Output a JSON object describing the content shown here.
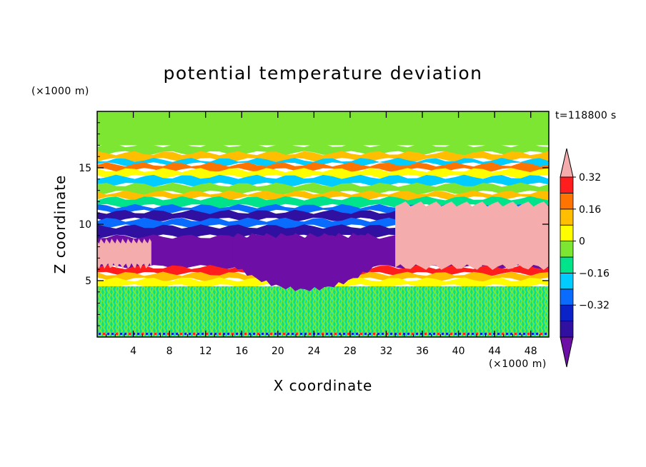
{
  "chart_data": {
    "type": "heatmap",
    "title": "potential temperature deviation",
    "xlabel": "X coordinate",
    "ylabel": "Z coordinate",
    "x_unit": "(×1000 m)",
    "y_unit": "(×1000 m)",
    "time_label": "t=118800 s",
    "xlim": [
      0,
      50
    ],
    "ylim": [
      0,
      20
    ],
    "x_ticks": [
      4,
      8,
      12,
      16,
      20,
      24,
      28,
      32,
      36,
      40,
      44,
      48
    ],
    "y_ticks": [
      5,
      10,
      15
    ],
    "colorbar": {
      "levels": [
        -0.48,
        -0.4,
        -0.32,
        -0.24,
        -0.16,
        -0.08,
        0,
        0.08,
        0.16,
        0.24,
        0.32,
        0.4
      ],
      "tick_values": [
        -0.32,
        -0.16,
        0,
        0.16,
        0.32
      ],
      "tick_labels": [
        "−0.32",
        "−0.16",
        "0",
        "0.16",
        "0.32"
      ],
      "colors": [
        "#6d0fa6",
        "#3010a0",
        "#0a22c8",
        "#0a6cff",
        "#00ccff",
        "#00e38a",
        "#7de632",
        "#fffd00",
        "#ffbe00",
        "#ff7300",
        "#ff1d1d",
        "#f4acac"
      ]
    },
    "field": [
      {
        "z": [
          17,
          20
        ],
        "value": 0.02
      },
      {
        "z": [
          16.3,
          17
        ],
        "value": 0.06
      },
      {
        "z": [
          15.7,
          16.3
        ],
        "value": 0.2
      },
      {
        "z": [
          15.3,
          15.7
        ],
        "value": -0.12
      },
      {
        "z": [
          14.8,
          15.3
        ],
        "value": 0.28
      },
      {
        "z": [
          14.2,
          14.8
        ],
        "value": 0.1
      },
      {
        "z": [
          13.5,
          14.2
        ],
        "value": -0.1
      },
      {
        "z": [
          12.8,
          13.5
        ],
        "value": 0.05
      },
      {
        "z": [
          12.3,
          12.8
        ],
        "value": 0.22
      },
      {
        "z": [
          11.6,
          12.3
        ],
        "value": -0.08
      },
      {
        "z": [
          11.1,
          11.6
        ],
        "value": -0.2
      },
      {
        "z": [
          10.4,
          11.1
        ],
        "value": -0.36
      },
      {
        "z": [
          9.8,
          10.4
        ],
        "value": -0.22
      },
      {
        "z": [
          8.9,
          9.8
        ],
        "value": -0.38
      },
      {
        "z": [
          6.2,
          8.9
        ],
        "value": -0.46
      },
      {
        "z": [
          5.6,
          6.2
        ],
        "value": 0.35
      },
      {
        "z": [
          5.1,
          5.6
        ],
        "value": 0.2
      },
      {
        "z": [
          4.5,
          5.1
        ],
        "value": 0.1
      },
      {
        "z": [
          0,
          4.5
        ],
        "value": 0.02
      }
    ],
    "regions": [
      {
        "x": [
          0,
          6
        ],
        "z": [
          6.3,
          8.5
        ],
        "value": 0.45
      },
      {
        "x": [
          33,
          50
        ],
        "z": [
          6.2,
          11.8
        ],
        "value": 0.45
      },
      {
        "x": [
          15,
          31
        ],
        "z": [
          4.2,
          9
        ],
        "value": -0.46
      }
    ]
  }
}
